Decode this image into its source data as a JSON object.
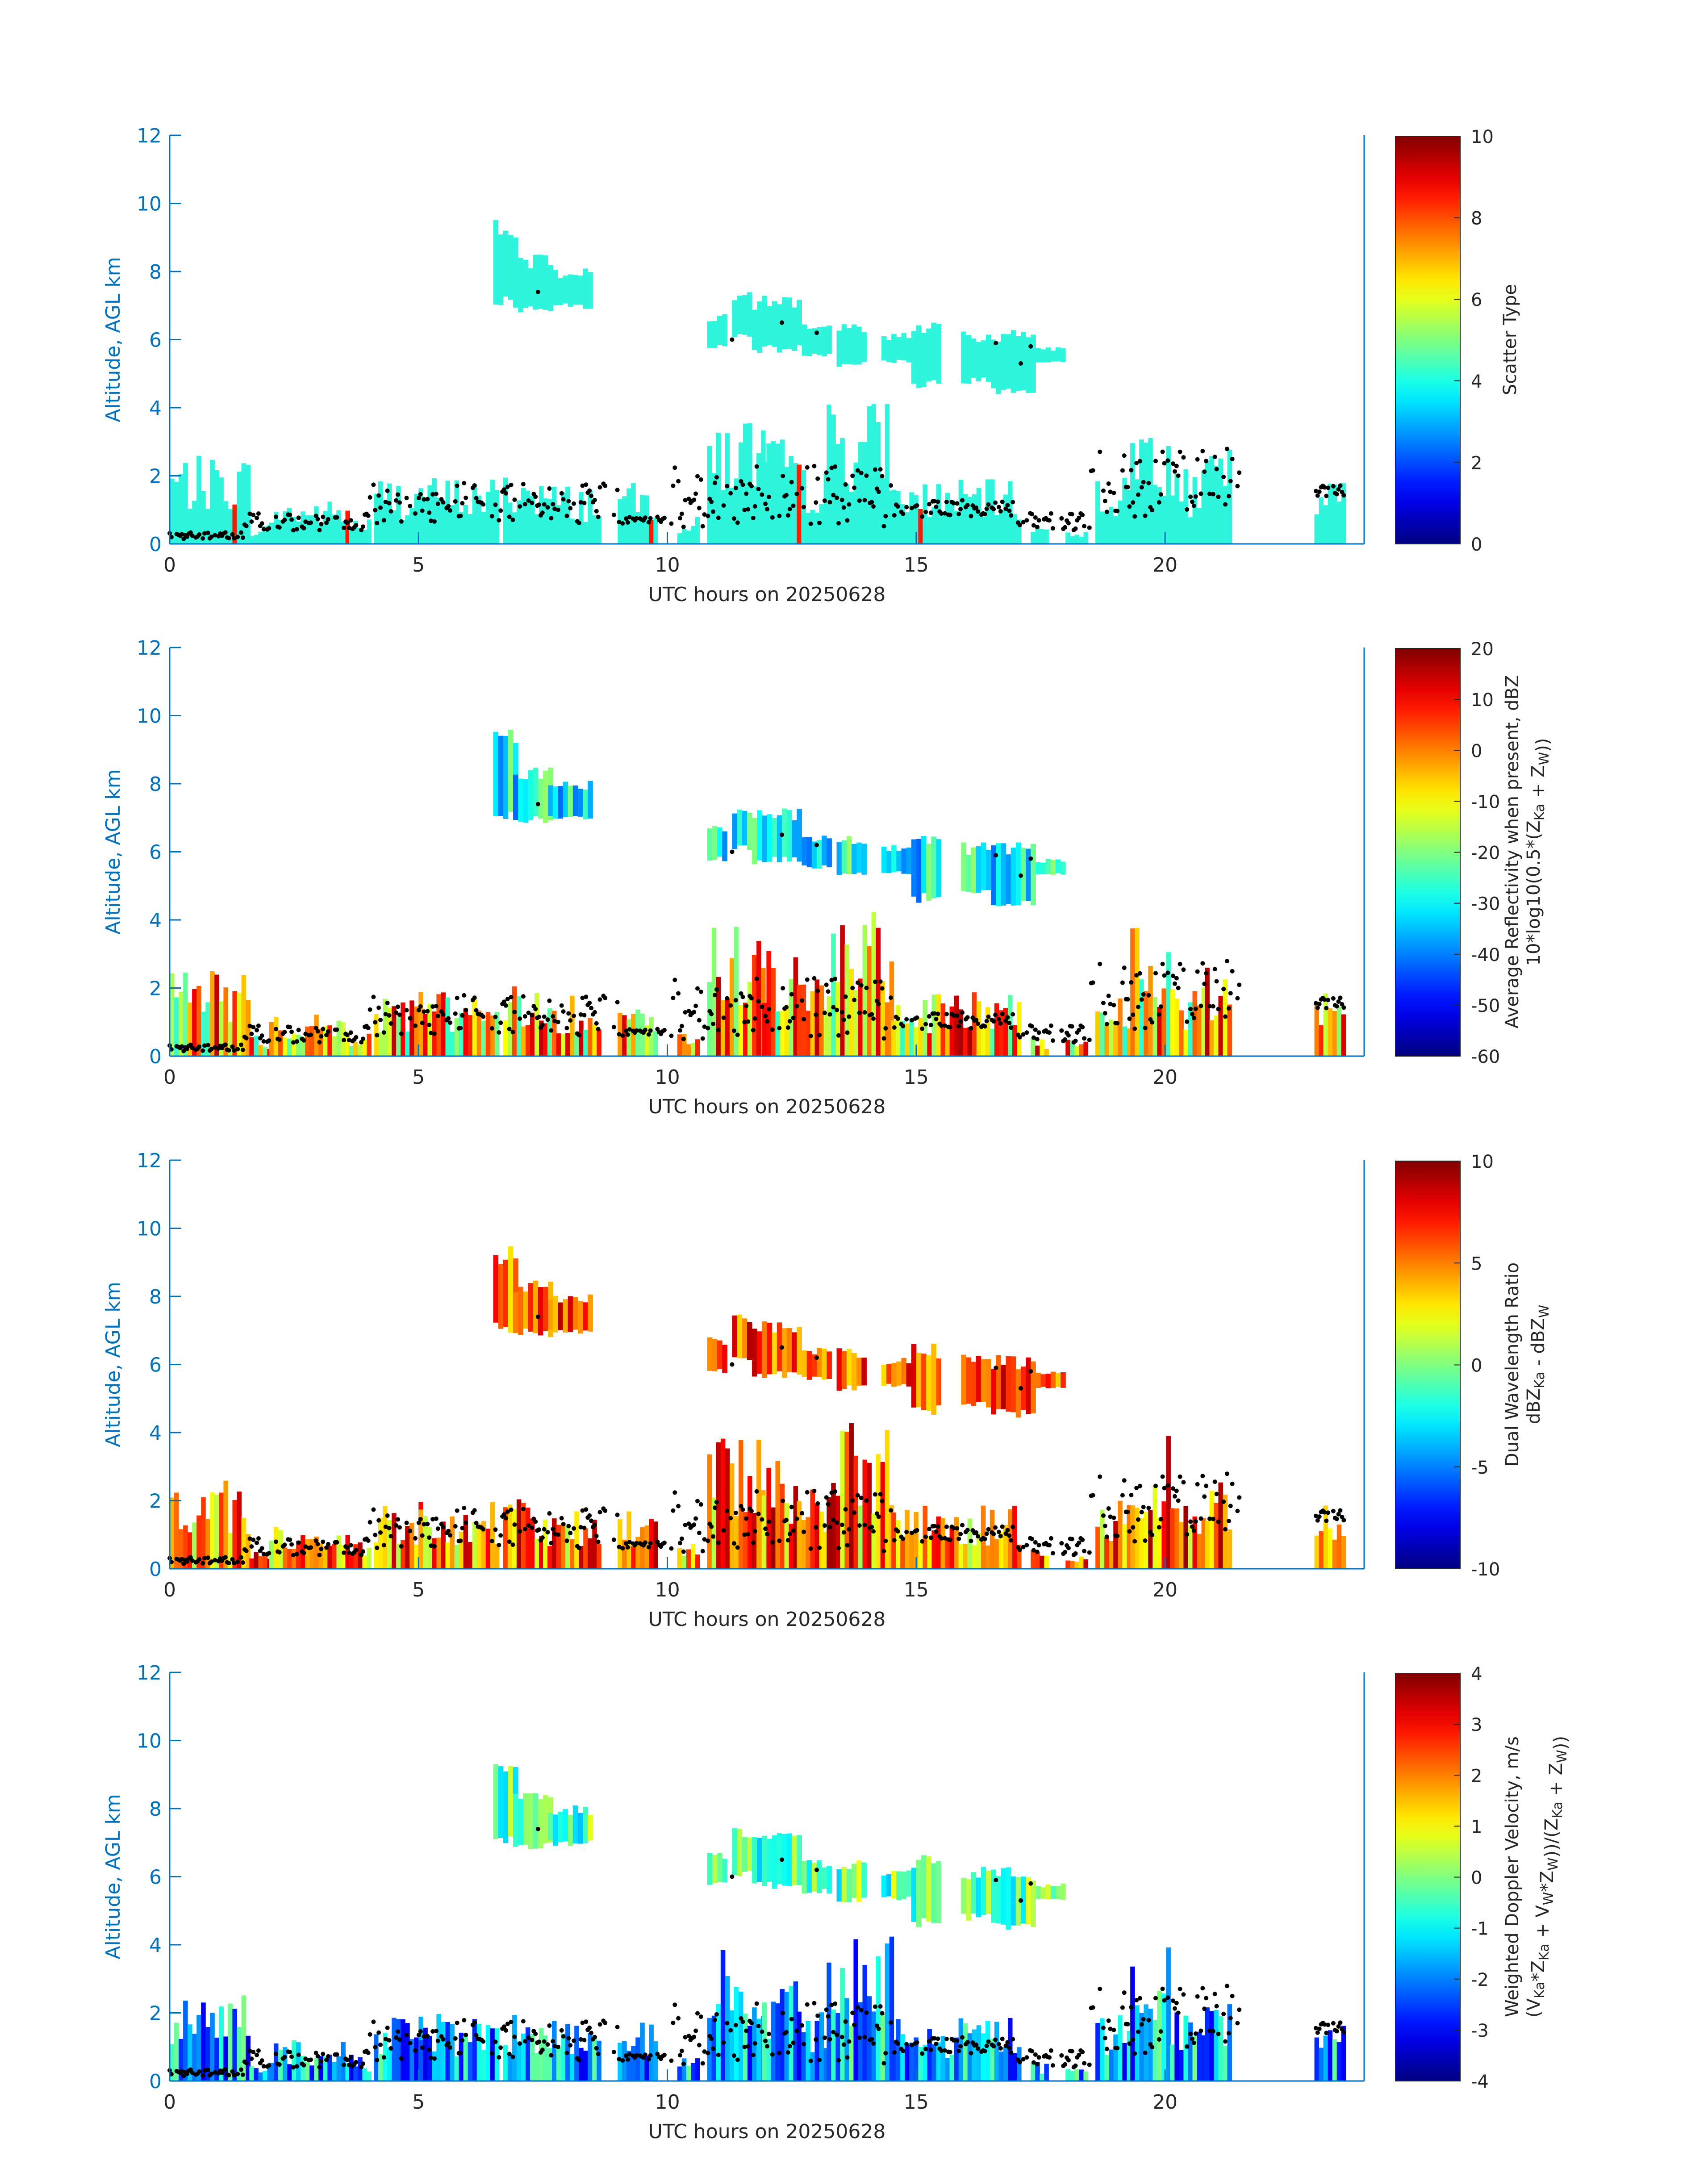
{
  "figure": {
    "colors": {
      "axis": "#0072BD",
      "text": "#262626",
      "cloud_cyan": "#2FF5DC",
      "marker": "#000000"
    }
  },
  "chart_data": [
    {
      "type": "heatmap",
      "title": "",
      "xlabel": "UTC hours on 20250628",
      "ylabel": "Altitude, AGL km",
      "xlim": [
        0,
        24
      ],
      "ylim": [
        0,
        12
      ],
      "xticks": [
        "0",
        "5",
        "10",
        "15",
        "20"
      ],
      "yticks": [
        "0",
        "2",
        "4",
        "6",
        "8",
        "10",
        "12"
      ],
      "colorbar": {
        "label_lines": [
          "Scatter Type"
        ],
        "ticks": [
          "0",
          "2",
          "4",
          "6",
          "8",
          "10"
        ],
        "range": [
          0,
          10
        ],
        "colormap": "jet"
      },
      "dominant_value": 4.3
    },
    {
      "type": "heatmap",
      "title": "",
      "xlabel": "UTC hours on 20250628",
      "ylabel": "Altitude, AGL km",
      "xlim": [
        0,
        24
      ],
      "ylim": [
        0,
        12
      ],
      "xticks": [
        "0",
        "5",
        "10",
        "15",
        "20"
      ],
      "yticks": [
        "0",
        "2",
        "4",
        "6",
        "8",
        "10",
        "12"
      ],
      "colorbar": {
        "label_lines": [
          "Average Reflectivity when present, dBZ",
          "10*log10(0.5*(Z_Ka + Z_W))"
        ],
        "ticks": [
          "-60",
          "-50",
          "-40",
          "-30",
          "-20",
          "-10",
          "0",
          "10",
          "20"
        ],
        "range": [
          -60,
          20
        ],
        "colormap": "jet"
      },
      "low_cloud_value": -5,
      "high_cloud_value": -30
    },
    {
      "type": "heatmap",
      "title": "",
      "xlabel": "UTC hours on 20250628",
      "ylabel": "Altitude, AGL km",
      "xlim": [
        0,
        24
      ],
      "ylim": [
        0,
        12
      ],
      "xticks": [
        "0",
        "5",
        "10",
        "15",
        "20"
      ],
      "yticks": [
        "0",
        "2",
        "4",
        "6",
        "8",
        "10",
        "12"
      ],
      "colorbar": {
        "label_lines": [
          "Dual Wavelength Ratio",
          "dBZ_Ka - dBZ_W"
        ],
        "ticks": [
          "-10",
          "-5",
          "0",
          "5",
          "10"
        ],
        "range": [
          -10,
          10
        ],
        "colormap": "jet"
      },
      "low_cloud_value": 5,
      "high_cloud_value": 6
    },
    {
      "type": "heatmap",
      "title": "",
      "xlabel": "UTC hours on 20250628",
      "ylabel": "Altitude, AGL km",
      "xlim": [
        0,
        24
      ],
      "ylim": [
        0,
        12
      ],
      "xticks": [
        "0",
        "5",
        "10",
        "15",
        "20"
      ],
      "yticks": [
        "0",
        "2",
        "4",
        "6",
        "8",
        "10",
        "12"
      ],
      "colorbar": {
        "label_lines": [
          "Weighted Doppler Velocity, m/s",
          "(V_Ka*Z_Ka + V_W*Z_W))/(Z_Ka + Z_W))"
        ],
        "ticks": [
          "-4",
          "-3",
          "-2",
          "-1",
          "0",
          "1",
          "2",
          "3",
          "4"
        ],
        "range": [
          -4,
          4
        ],
        "colormap": "jet"
      },
      "low_cloud_value": -1.6,
      "high_cloud_value": -0.3
    }
  ]
}
